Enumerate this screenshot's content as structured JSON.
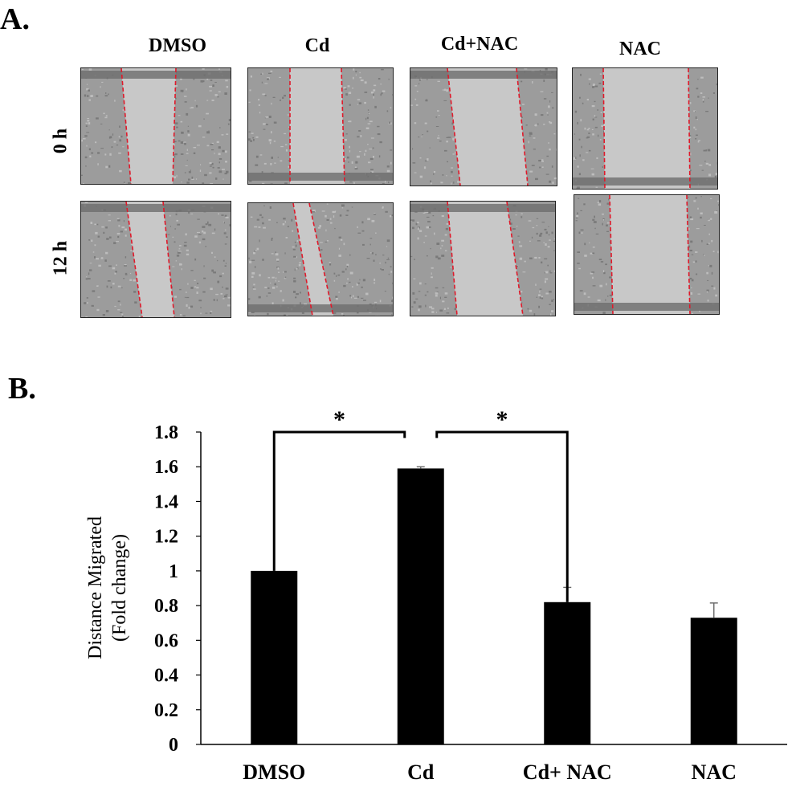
{
  "panel_a": {
    "label": "A.",
    "columns": [
      "DMSO",
      "Cd",
      "Cd+NAC",
      "NAC"
    ],
    "rows": [
      "0 h",
      "12 h"
    ]
  },
  "panel_b": {
    "label": "B."
  },
  "colors": {
    "bar": "#000000",
    "wound_line": "#e0192a",
    "tissue": "#9c9c9c",
    "gap": "#c8c8c8"
  },
  "chart_data": {
    "type": "bar",
    "categories": [
      "DMSO",
      "Cd",
      "Cd+ NAC",
      "NAC"
    ],
    "values": [
      1.0,
      1.59,
      0.82,
      0.73
    ],
    "errors": [
      0.0,
      0.01,
      0.085,
      0.085
    ],
    "ylabel": [
      "Distance Migrated",
      "(Fold change)"
    ],
    "ylim": [
      0,
      1.8
    ],
    "yticks": [
      0,
      0.2,
      0.4,
      0.6,
      0.8,
      1,
      1.2,
      1.4,
      1.6,
      1.8
    ],
    "ytick_labels": [
      "0",
      "0.2",
      "0.4",
      "0.6",
      "0.8",
      "1",
      "1.2",
      "1.4",
      "1.6",
      "1.8"
    ],
    "significance": [
      {
        "from": 0,
        "to": 1,
        "label": "*"
      },
      {
        "from": 1,
        "to": 2,
        "label": "*"
      }
    ],
    "grid": false,
    "legend": "none"
  }
}
